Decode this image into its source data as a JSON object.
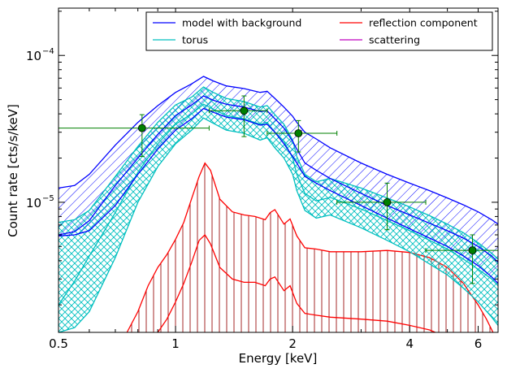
{
  "chart_data": {
    "type": "line",
    "xlabel": "Energy [keV]",
    "ylabel": "Count rate [cts/s/keV]",
    "xscale": "log",
    "yscale": "log",
    "xlim": [
      0.5,
      6.75
    ],
    "ylim": [
      1.3e-06,
      0.00021
    ],
    "x_ticks": [
      {
        "value": 0.5,
        "label": "0.5"
      },
      {
        "value": 1,
        "label": "1"
      },
      {
        "value": 2,
        "label": "2"
      },
      {
        "value": 4,
        "label": "4"
      },
      {
        "value": 6,
        "label": "6"
      }
    ],
    "y_ticks": [
      {
        "value": 1e-05,
        "base": "10",
        "exp": "−5"
      },
      {
        "value": 0.0001,
        "base": "10",
        "exp": "−4"
      }
    ],
    "legend": {
      "position": "top-right",
      "entries": [
        {
          "label": "model with background",
          "color": "#0000ff"
        },
        {
          "label": "reflection component",
          "color": "#ff0000"
        },
        {
          "label": "torus",
          "color": "#00bfbf"
        },
        {
          "label": "scattering",
          "color": "#bf00bf"
        }
      ]
    },
    "series": [
      {
        "name": "model with background",
        "color": "#0000ff",
        "x": [
          0.5,
          0.55,
          0.6,
          0.7,
          0.8,
          0.9,
          1.0,
          1.1,
          1.18,
          1.25,
          1.35,
          1.5,
          1.65,
          1.72,
          1.8,
          1.9,
          2.0,
          2.05,
          2.15,
          2.3,
          2.5,
          3.0,
          3.5,
          4.0,
          4.5,
          5.0,
          5.5,
          6.0,
          6.5,
          6.75
        ],
        "y_mid": [
          6e-06,
          6.3e-06,
          7.5e-06,
          1.3e-05,
          2e-05,
          2.9e-05,
          3.9e-05,
          4.6e-05,
          5.3e-05,
          4.95e-05,
          4.65e-05,
          4.45e-05,
          4.15e-05,
          4.2e-05,
          3.7e-05,
          3.2e-05,
          2.6e-05,
          2.3e-05,
          1.85e-05,
          1.65e-05,
          1.45e-05,
          1.15e-05,
          9.5e-06,
          8.2e-06,
          7.2e-06,
          6.4e-06,
          5.7e-06,
          5e-06,
          4.3e-06,
          3.9e-06
        ],
        "y_low": [
          5.9e-06,
          6e-06,
          6.4e-06,
          9.5e-06,
          1.55e-05,
          2.3e-05,
          3.1e-05,
          3.7e-05,
          4.35e-05,
          4.1e-05,
          3.8e-05,
          3.65e-05,
          3.35e-05,
          3.4e-05,
          3e-05,
          2.5e-05,
          2.05e-05,
          1.85e-05,
          1.5e-05,
          1.35e-05,
          1.2e-05,
          9.5e-06,
          7.8e-06,
          6.6e-06,
          5.7e-06,
          5e-06,
          4.3e-06,
          3.7e-06,
          3.1e-06,
          2.8e-06
        ],
        "y_high": [
          1.25e-05,
          1.3e-05,
          1.55e-05,
          2.45e-05,
          3.5e-05,
          4.55e-05,
          5.6e-05,
          6.4e-05,
          7.2e-05,
          6.7e-05,
          6.2e-05,
          5.95e-05,
          5.6e-05,
          5.7e-05,
          5.1e-05,
          4.45e-05,
          3.85e-05,
          3.5e-05,
          3e-05,
          2.7e-05,
          2.35e-05,
          1.85e-05,
          1.55e-05,
          1.35e-05,
          1.2e-05,
          1.07e-05,
          9.6e-06,
          8.6e-06,
          7.6e-06,
          7.1e-06
        ]
      },
      {
        "name": "torus",
        "color": "#00bfbf",
        "x": [
          0.5,
          0.55,
          0.6,
          0.7,
          0.8,
          0.9,
          1.0,
          1.1,
          1.18,
          1.25,
          1.35,
          1.5,
          1.65,
          1.72,
          1.8,
          1.9,
          2.0,
          2.05,
          2.15,
          2.3,
          2.5,
          3.0,
          3.5,
          4.0,
          4.5,
          5.0,
          5.5,
          6.0,
          6.5,
          6.75
        ],
        "y_mid": [
          2e-06,
          2.9e-06,
          4.3e-06,
          8.5e-06,
          1.6e-05,
          2.5e-05,
          3.4e-05,
          4e-05,
          4.65e-05,
          4.3e-05,
          3.9e-05,
          3.7e-05,
          3.4e-05,
          3.5e-05,
          3e-05,
          2.6e-05,
          2e-05,
          1.55e-05,
          1.15e-05,
          1.02e-05,
          1.08e-05,
          9e-06,
          7.5e-06,
          6.4e-06,
          5.5e-06,
          4.8e-06,
          4.1e-06,
          3.5e-06,
          3e-06,
          2.7e-06
        ],
        "y_low": [
          1.3e-06,
          1.4e-06,
          1.8e-06,
          4.2e-06,
          1e-05,
          1.75e-05,
          2.5e-05,
          3.1e-05,
          3.75e-05,
          3.45e-05,
          3.1e-05,
          2.95e-05,
          2.65e-05,
          2.75e-05,
          2.35e-05,
          2e-05,
          1.55e-05,
          1.2e-05,
          8.8e-06,
          7.8e-06,
          8.2e-06,
          6.7e-06,
          5.5e-06,
          4.6e-06,
          3.8e-06,
          3.2e-06,
          2.6e-06,
          2.1e-06,
          1.65e-06,
          1.45e-06
        ],
        "y_high": [
          7.3e-06,
          7.6e-06,
          8.8e-06,
          1.5e-05,
          2.4e-05,
          3.5e-05,
          4.6e-05,
          5.2e-05,
          6.1e-05,
          5.6e-05,
          5.1e-05,
          4.85e-05,
          4.45e-05,
          4.55e-05,
          3.95e-05,
          3.4e-05,
          2.65e-05,
          2.05e-05,
          1.55e-05,
          1.38e-05,
          1.45e-05,
          1.25e-05,
          1.07e-05,
          9.3e-06,
          8.1e-06,
          7.1e-06,
          6.2e-06,
          5.3e-06,
          4.5e-06,
          4.1e-06
        ]
      },
      {
        "name": "reflection component",
        "color": "#ff0000",
        "x": [
          0.75,
          0.8,
          0.85,
          0.9,
          0.95,
          1.0,
          1.05,
          1.1,
          1.15,
          1.19,
          1.23,
          1.3,
          1.4,
          1.5,
          1.6,
          1.7,
          1.75,
          1.8,
          1.9,
          1.97,
          2.05,
          2.15,
          2.3,
          2.5,
          3.0,
          3.5,
          4.0,
          4.5,
          5.0,
          5.5,
          6.0,
          6.3,
          6.6
        ],
        "y_high": [
          1.3e-06,
          1.8e-06,
          2.7e-06,
          3.6e-06,
          4.4e-06,
          5.6e-06,
          7.3e-06,
          1.06e-05,
          1.5e-05,
          1.85e-05,
          1.65e-05,
          1.05e-05,
          8.6e-06,
          8.2e-06,
          8e-06,
          7.6e-06,
          8.5e-06,
          8.9e-06,
          7.1e-06,
          7.7e-06,
          5.9e-06,
          4.9e-06,
          4.8e-06,
          4.6e-06,
          4.6e-06,
          4.7e-06,
          4.55e-06,
          4.2e-06,
          3.6e-06,
          2.8e-06,
          2e-06,
          1.6e-06,
          1.25e-06
        ],
        "y_low": [
          null,
          null,
          null,
          1.3e-06,
          1.6e-06,
          2.1e-06,
          2.8e-06,
          3.9e-06,
          5.5e-06,
          6e-06,
          5.2e-06,
          3.6e-06,
          3e-06,
          2.85e-06,
          2.85e-06,
          2.7e-06,
          3e-06,
          3.1e-06,
          2.5e-06,
          2.7e-06,
          2.05e-06,
          1.75e-06,
          1.7e-06,
          1.65e-06,
          1.6e-06,
          1.55e-06,
          1.45e-06,
          1.35e-06,
          1.2e-06,
          null,
          null,
          null,
          null
        ]
      }
    ],
    "data_points": {
      "name": "data",
      "color": "#008000",
      "points": [
        {
          "x": 0.82,
          "y": 3.2e-05,
          "xerr_low": 0.5,
          "xerr_high": 1.22,
          "yerr_low": 2.05e-05,
          "yerr_high": 3.95e-05
        },
        {
          "x": 1.5,
          "y": 4.2e-05,
          "xerr_low": 1.22,
          "xerr_high": 1.72,
          "yerr_low": 2.8e-05,
          "yerr_high": 5.3e-05
        },
        {
          "x": 2.07,
          "y": 2.95e-05,
          "xerr_low": 1.72,
          "xerr_high": 2.6,
          "yerr_low": 2.2e-05,
          "yerr_high": 3.6e-05
        },
        {
          "x": 3.5,
          "y": 1e-05,
          "xerr_low": 2.6,
          "xerr_high": 4.4,
          "yerr_low": 6.5e-06,
          "yerr_high": 1.35e-05
        },
        {
          "x": 5.8,
          "y": 4.7e-06,
          "xerr_low": 4.4,
          "xerr_high": 6.75,
          "yerr_low": 2.8e-06,
          "yerr_high": 6e-06
        }
      ]
    }
  }
}
